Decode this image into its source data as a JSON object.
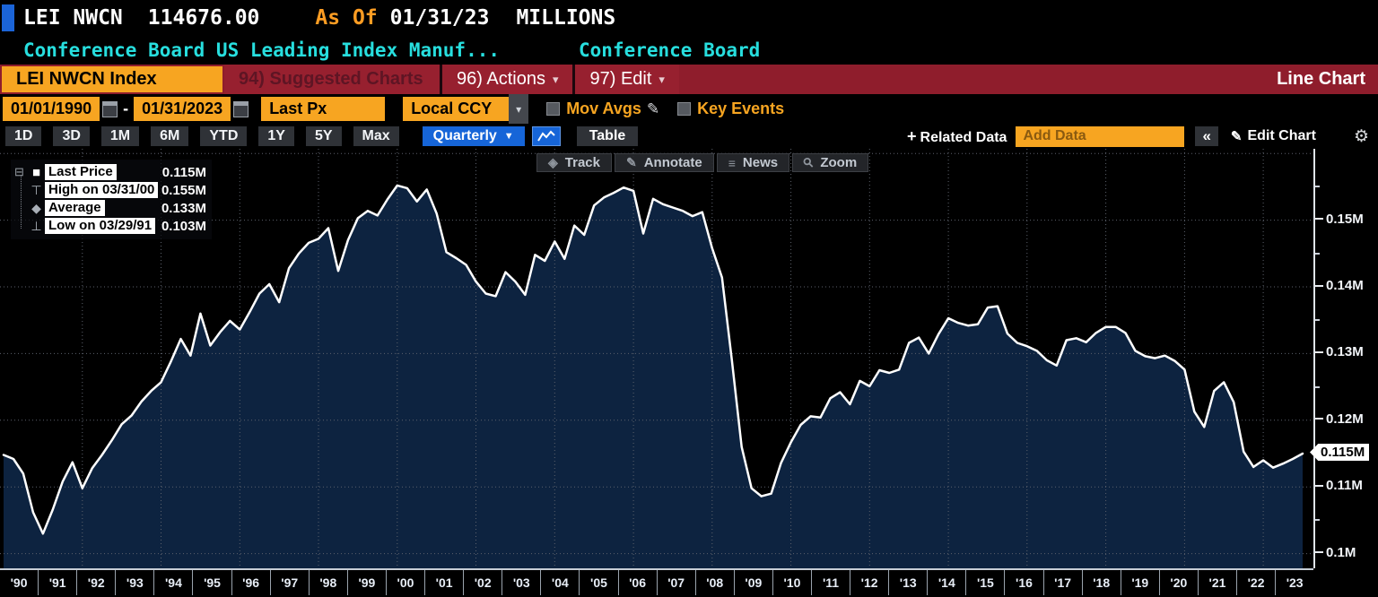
{
  "header": {
    "ticker": "LEI NWCN",
    "price": "114676.00",
    "as_of_label": "As Of",
    "as_of_date": "01/31/23",
    "units": "MILLIONS",
    "description": "Conference Board US Leading Index Manuf...",
    "source": "Conference Board"
  },
  "menubar": {
    "security": "LEI NWCN Index",
    "suggested_charts": "94) Suggested Charts",
    "actions": "96) Actions",
    "edit": "97) Edit",
    "chart_type": "Line Chart"
  },
  "toolbar": {
    "date_from": "01/01/1990",
    "date_separator": "-",
    "date_to": "01/31/2023",
    "price_field": "Last Px",
    "currency": "Local CCY",
    "mov_avgs_label": "Mov Avgs",
    "key_events_label": "Key Events"
  },
  "tabs": {
    "ranges": [
      "1D",
      "3D",
      "1M",
      "6M",
      "YTD",
      "1Y",
      "5Y",
      "Max"
    ],
    "period": "Quarterly",
    "table_label": "Table",
    "related_label": "Related Data",
    "add_data_placeholder": "Add Data",
    "collapse_label": "«",
    "edit_chart_label": "Edit Chart"
  },
  "plot_toolbar": [
    {
      "icon": "track",
      "label": "Track"
    },
    {
      "icon": "annotate",
      "label": "Annotate"
    },
    {
      "icon": "news",
      "label": "News"
    },
    {
      "icon": "zoom",
      "label": "Zoom"
    }
  ],
  "legend": [
    {
      "marker": "marker_square",
      "tree": "expand",
      "label": "Last Price",
      "value": "0.115M"
    },
    {
      "marker": "marker_high",
      "tree": "",
      "label": "High on 03/31/00",
      "value": "0.155M"
    },
    {
      "marker": "marker_avg",
      "tree": "",
      "label": "Average",
      "value": "0.133M"
    },
    {
      "marker": "marker_low",
      "tree": "",
      "label": "Low on 03/29/91",
      "value": "0.103M"
    }
  ],
  "icons": {
    "gear": "⚙",
    "pencil": "✎",
    "plus": "+",
    "dropdown": "▾",
    "dropdown_solid": "▼",
    "track": "◈",
    "annotate": "✎",
    "news": "≡",
    "zoom": "⚲",
    "expand_box": "⊟",
    "marker_square": "■",
    "marker_high": "⊤",
    "marker_avg": "◆",
    "marker_low": "⊥"
  },
  "colors": {
    "accent_orange": "#f7a521",
    "amber_text": "#ff9d23",
    "cyan_text": "#27dede",
    "menu_red": "#8f1d2c",
    "selected_blue": "#1665d8",
    "chart_fill": "#0d2340",
    "chart_line": "#ffffff",
    "grid": "#5c616c"
  },
  "chart_data": {
    "type": "area",
    "title": "Conference Board US Leading Index Manuf (LEI NWCN), Millions, Quarterly",
    "start_year": 1990,
    "frequency": "quarterly",
    "ylim": [
      0.0978,
      0.1607
    ],
    "grid_y": [
      0.16,
      0.15,
      0.14,
      0.13,
      0.12,
      0.11,
      0.1
    ],
    "grid_years": [
      1992,
      1994,
      1996,
      1998,
      2000,
      2002,
      2004,
      2006,
      2008,
      2010,
      2012,
      2014,
      2016,
      2018,
      2020,
      2022
    ],
    "y_ticks": [
      {
        "value": 0.15,
        "label": "0.15M"
      },
      {
        "value": 0.14,
        "label": "0.14M"
      },
      {
        "value": 0.13,
        "label": "0.13M"
      },
      {
        "value": 0.12,
        "label": "0.12M"
      },
      {
        "value": 0.11,
        "label": "0.11M"
      },
      {
        "value": 0.1,
        "label": "0.1M"
      }
    ],
    "minor_ticks": [
      0.155,
      0.145,
      0.135,
      0.125,
      0.105
    ],
    "last_price": {
      "value": 0.115,
      "label": "0.115M"
    },
    "x_labels": [
      "'90",
      "'91",
      "'92",
      "'93",
      "'94",
      "'95",
      "'96",
      "'97",
      "'98",
      "'99",
      "'00",
      "'01",
      "'02",
      "'03",
      "'04",
      "'05",
      "'06",
      "'07",
      "'08",
      "'09",
      "'10",
      "'11",
      "'12",
      "'13",
      "'14",
      "'15",
      "'16",
      "'17",
      "'18",
      "'19",
      "'20",
      "'21",
      "'22",
      "'23"
    ],
    "values": [
      0.1148,
      0.1142,
      0.112,
      0.1062,
      0.103,
      0.1066,
      0.1108,
      0.1137,
      0.1098,
      0.1128,
      0.1148,
      0.117,
      0.1194,
      0.1207,
      0.1228,
      0.1244,
      0.1257,
      0.1288,
      0.1322,
      0.1297,
      0.136,
      0.1312,
      0.1332,
      0.1349,
      0.1336,
      0.1362,
      0.139,
      0.1404,
      0.1377,
      0.1428,
      0.145,
      0.1466,
      0.1472,
      0.1488,
      0.1424,
      0.147,
      0.1503,
      0.1514,
      0.1507,
      0.1531,
      0.1552,
      0.1548,
      0.1528,
      0.1546,
      0.151,
      0.1452,
      0.1443,
      0.1433,
      0.1408,
      0.139,
      0.1386,
      0.1422,
      0.1408,
      0.1388,
      0.1448,
      0.1439,
      0.1468,
      0.1442,
      0.1492,
      0.1478,
      0.1522,
      0.1534,
      0.1541,
      0.1549,
      0.1544,
      0.148,
      0.1532,
      0.1524,
      0.1519,
      0.1514,
      0.1506,
      0.1512,
      0.1458,
      0.1414,
      0.129,
      0.116,
      0.1098,
      0.1086,
      0.109,
      0.1136,
      0.1167,
      0.1193,
      0.1206,
      0.1204,
      0.1233,
      0.1242,
      0.1224,
      0.1259,
      0.1251,
      0.1275,
      0.1271,
      0.1276,
      0.1316,
      0.1324,
      0.13,
      0.1329,
      0.1353,
      0.1346,
      0.1342,
      0.1344,
      0.1369,
      0.1371,
      0.133,
      0.1316,
      0.1311,
      0.1304,
      0.129,
      0.1282,
      0.132,
      0.1323,
      0.1317,
      0.1331,
      0.134,
      0.134,
      0.1331,
      0.1304,
      0.1296,
      0.1293,
      0.1297,
      0.1289,
      0.1276,
      0.1213,
      0.119,
      0.1244,
      0.1257,
      0.1227,
      0.1153,
      0.113,
      0.114,
      0.1129,
      0.1135,
      0.1142,
      0.115
    ]
  }
}
